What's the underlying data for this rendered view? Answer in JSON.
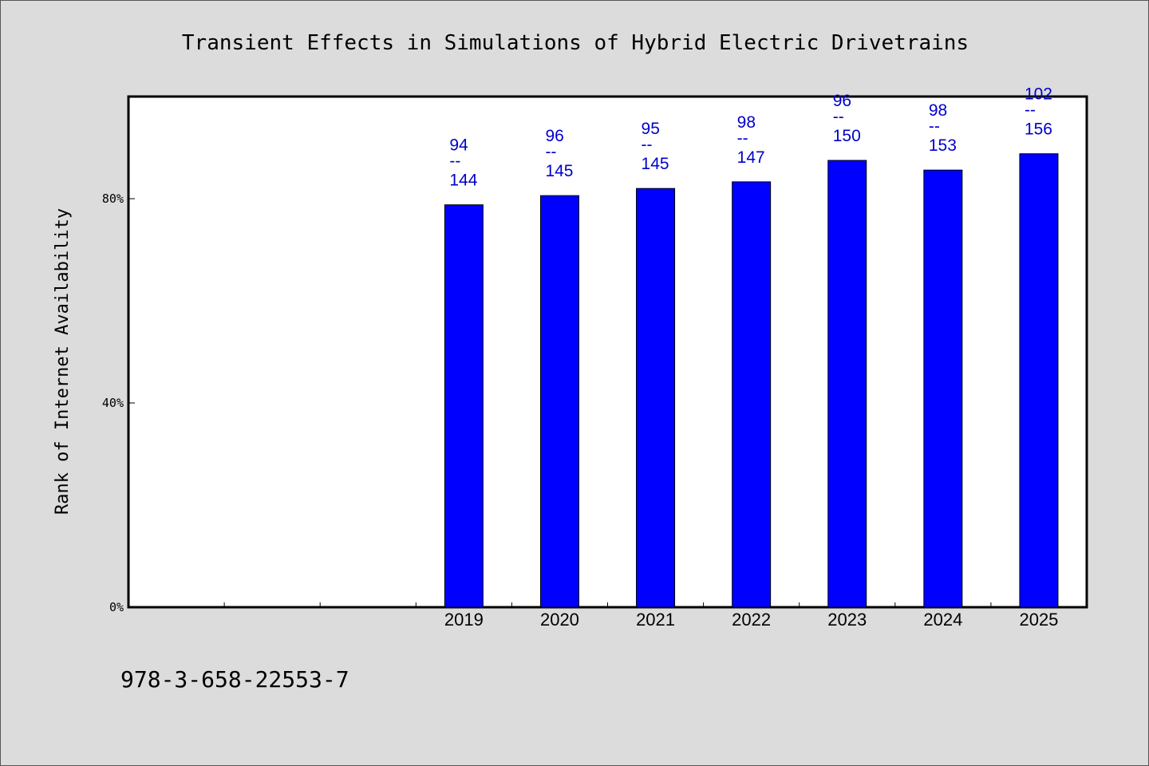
{
  "footer": {
    "code": "978-3-658-22553-7"
  },
  "colors": {
    "bar": "#0000ff",
    "label": "#0000cc",
    "plot_bg": "#ffffff",
    "page_bg": "#dcdcdc"
  },
  "chart_data": {
    "type": "bar",
    "title": "Transient Effects in Simulations of Hybrid Electric Drivetrains",
    "xlabel": "",
    "ylabel": "Rank of Internet Availability",
    "ylim": [
      0,
      100
    ],
    "y_tick_values": [
      0,
      40,
      80
    ],
    "y_tick_labels": [
      "0%",
      "40%",
      "80%"
    ],
    "grid": false,
    "slots": 10,
    "first_category_slot": 3,
    "categories": [
      "2019",
      "2020",
      "2021",
      "2022",
      "2023",
      "2024",
      "2025"
    ],
    "series": [
      {
        "values": [
          78.8,
          80.6,
          82.0,
          83.3,
          87.5,
          85.6,
          88.8
        ]
      }
    ],
    "data_labels": [
      {
        "top": "94",
        "sep": "--",
        "bottom": "144"
      },
      {
        "top": "96",
        "sep": "--",
        "bottom": "145"
      },
      {
        "top": "95",
        "sep": "--",
        "bottom": "145"
      },
      {
        "top": "98",
        "sep": "--",
        "bottom": "147"
      },
      {
        "top": "96",
        "sep": "--",
        "bottom": "150"
      },
      {
        "top": "98",
        "sep": "--",
        "bottom": "153"
      },
      {
        "top": "102",
        "sep": "--",
        "bottom": "156"
      }
    ]
  }
}
